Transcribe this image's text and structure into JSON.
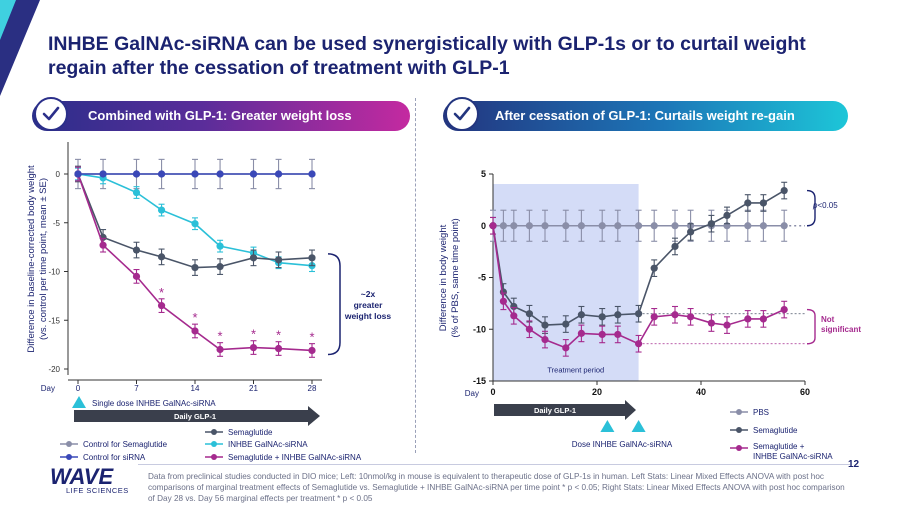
{
  "title": "INHBE GalNAc-siRNA can be used synergistically with GLP-1s or to curtail weight regain after the cessation of treatment with GLP-1",
  "left_banner": "Combined with GLP-1: Greater weight loss",
  "right_banner": "After cessation of GLP-1: Curtails weight re-gain",
  "colors": {
    "control_sema": "#8a8ea8",
    "control_sirna": "#3a48b8",
    "semaglutide": "#4a5568",
    "sirna": "#2bc0d8",
    "combo": "#a52a8e",
    "navy": "#1b2370",
    "shade": "#d4dcf7"
  },
  "logo": {
    "brand": "WAVE",
    "sub": "LIFE SCIENCES"
  },
  "page_number": "12",
  "footnote": "Data from preclinical studies conducted in DIO mice; Left: 10nmol/kg in mouse is equivalent to therapeutic dose of GLP-1s in human. Left Stats: Linear Mixed Effects ANOVA with post hoc comparisons of marginal treatment effects of Semaglutide vs. Semaglutide + INHBE GalNAc-siRNA per time point * p < 0.05; Right Stats: Linear Mixed Effects ANOVA with post hoc comparison of Day 28 vs. Day 56 marginal effects per treatment * p < 0.05",
  "chart_data": [
    {
      "type": "line",
      "title": "",
      "xlabel": "Day",
      "ylabel": "Difference in baseline-corrected body weight (vs. control per time point, mean ± SE)",
      "ylabel_lines": [
        "Difference in baseline-corrected body weight",
        "(vs. control per time point, mean ± SE)"
      ],
      "xlim": [
        0,
        28
      ],
      "ylim": [
        -20,
        0
      ],
      "xticks": [
        0,
        7,
        14,
        21,
        28
      ],
      "yticks": [
        0,
        -5,
        -10,
        -15,
        -20
      ],
      "x": [
        0,
        3,
        7,
        10,
        14,
        17,
        21,
        24,
        28
      ],
      "series": [
        {
          "name": "Control for Semaglutide",
          "key": "control_sema",
          "values": [
            0,
            0,
            0,
            0,
            0,
            0,
            0,
            0,
            0
          ],
          "err": [
            1.5,
            1.5,
            1.5,
            1.5,
            1.5,
            1.5,
            1.5,
            1.5,
            1.5
          ]
        },
        {
          "name": "Control for siRNA",
          "key": "control_sirna",
          "values": [
            0,
            0,
            0,
            0,
            0,
            0,
            0,
            0,
            0
          ],
          "err": [
            0,
            0,
            0,
            0,
            0,
            0,
            0,
            0,
            0
          ]
        },
        {
          "name": "Semaglutide",
          "key": "semaglutide",
          "values": [
            0,
            -6.5,
            -7.8,
            -8.5,
            -9.6,
            -9.5,
            -8.6,
            -8.8,
            -8.6
          ],
          "err": [
            0.8,
            0.8,
            0.8,
            0.8,
            0.8,
            0.8,
            0.8,
            0.8,
            0.8
          ]
        },
        {
          "name": "INHBE GalNAc-siRNA",
          "key": "sirna",
          "values": [
            0,
            -0.4,
            -1.9,
            -3.7,
            -5.1,
            -7.4,
            -8.1,
            -9.1,
            -9.4
          ],
          "err": [
            0.6,
            0.6,
            0.6,
            0.6,
            0.6,
            0.6,
            0.6,
            0.6,
            0.6
          ]
        },
        {
          "name": "Semaglutide + INHBE GalNAc-siRNA",
          "key": "combo",
          "values": [
            0,
            -7.3,
            -10.5,
            -13.5,
            -16.1,
            -18,
            -17.8,
            -17.9,
            -18.1
          ],
          "err": [
            0.7,
            0.7,
            0.7,
            0.7,
            0.7,
            0.7,
            0.7,
            0.7,
            0.7
          ]
        }
      ],
      "significant_days": [
        10,
        14,
        17,
        21,
        24,
        28
      ],
      "star": "*",
      "annotation": [
        "~2x",
        "greater",
        "weight loss"
      ],
      "dose_label": "Single dose INHBE GalNAc-siRNA",
      "arrow_label": "Daily GLP-1",
      "legend_placement": "bottom"
    },
    {
      "type": "line",
      "title": "",
      "xlabel": "Day",
      "ylabel": "Difference in body weight (% of PBS, same time point)",
      "ylabel_lines": [
        "Difference in body weight",
        "(% of PBS, same time point)"
      ],
      "xlim": [
        0,
        60
      ],
      "ylim": [
        -15,
        5
      ],
      "xticks": [
        0,
        20,
        40,
        60
      ],
      "yticks": [
        5,
        0,
        -5,
        -10,
        -15
      ],
      "shade_label": "Treatment period",
      "shade_range": [
        0,
        28
      ],
      "series": [
        {
          "name": "PBS",
          "key": "control_sema",
          "x": [
            0,
            2,
            4,
            7,
            10,
            14,
            17,
            21,
            24,
            28,
            31,
            35,
            38,
            42,
            45,
            49,
            52,
            56
          ],
          "values": [
            0,
            0,
            0,
            0,
            0,
            0,
            0,
            0,
            0,
            0,
            0,
            0,
            0,
            0,
            0,
            0,
            0,
            0
          ],
          "err": [
            1.5,
            1.5,
            1.5,
            1.5,
            1.5,
            1.5,
            1.5,
            1.5,
            1.5,
            1.5,
            1.5,
            1.5,
            1.5,
            1.5,
            1.5,
            1.5,
            1.5,
            1.5
          ]
        },
        {
          "name": "Semaglutide",
          "key": "semaglutide",
          "x": [
            0,
            2,
            4,
            7,
            10,
            14,
            17,
            21,
            24,
            28,
            31,
            35,
            38,
            42,
            45,
            49,
            52,
            56
          ],
          "values": [
            0,
            -6.4,
            -7.8,
            -8.5,
            -9.6,
            -9.5,
            -8.6,
            -8.8,
            -8.6,
            -8.5,
            -4.1,
            -2.0,
            -0.6,
            0.2,
            1.0,
            2.2,
            2.2,
            3.4
          ],
          "err": [
            0.8,
            0.8,
            0.8,
            0.8,
            0.8,
            0.8,
            0.8,
            0.8,
            0.8,
            0.8,
            0.8,
            0.8,
            0.8,
            0.8,
            0.8,
            0.8,
            0.8,
            0.8
          ]
        },
        {
          "name": "Semaglutide + INHBE GalNAc-siRNA",
          "key": "combo",
          "x": [
            0,
            2,
            4,
            7,
            10,
            14,
            17,
            21,
            24,
            28,
            31,
            35,
            38,
            42,
            45,
            49,
            52,
            56
          ],
          "values": [
            0,
            -7.3,
            -8.7,
            -10,
            -11.0,
            -11.8,
            -10.4,
            -10.5,
            -10.5,
            -11.4,
            -8.8,
            -8.6,
            -8.8,
            -9.4,
            -9.6,
            -9.0,
            -9.0,
            -8.1
          ],
          "err": [
            0.8,
            0.8,
            0.8,
            0.8,
            0.8,
            0.8,
            0.8,
            0.8,
            0.8,
            0.8,
            0.8,
            0.8,
            0.8,
            0.8,
            0.8,
            0.8,
            0.8,
            0.8
          ]
        }
      ],
      "p_label": "<0.05",
      "p_italic": "p",
      "ns_label": [
        "Not",
        "significant"
      ],
      "dose_label": "Dose INHBE GalNAc-siRNA",
      "dose_days": [
        22,
        28
      ],
      "arrow_label": "Daily GLP-1",
      "legend": [
        {
          "label": "PBS",
          "key": "control_sema"
        },
        {
          "label": "Semaglutide",
          "key": "semaglutide"
        },
        {
          "label": "Semaglutide + INHBE GalNAc-siRNA",
          "key": "combo"
        }
      ],
      "legend_placement": "bottom-right"
    }
  ]
}
